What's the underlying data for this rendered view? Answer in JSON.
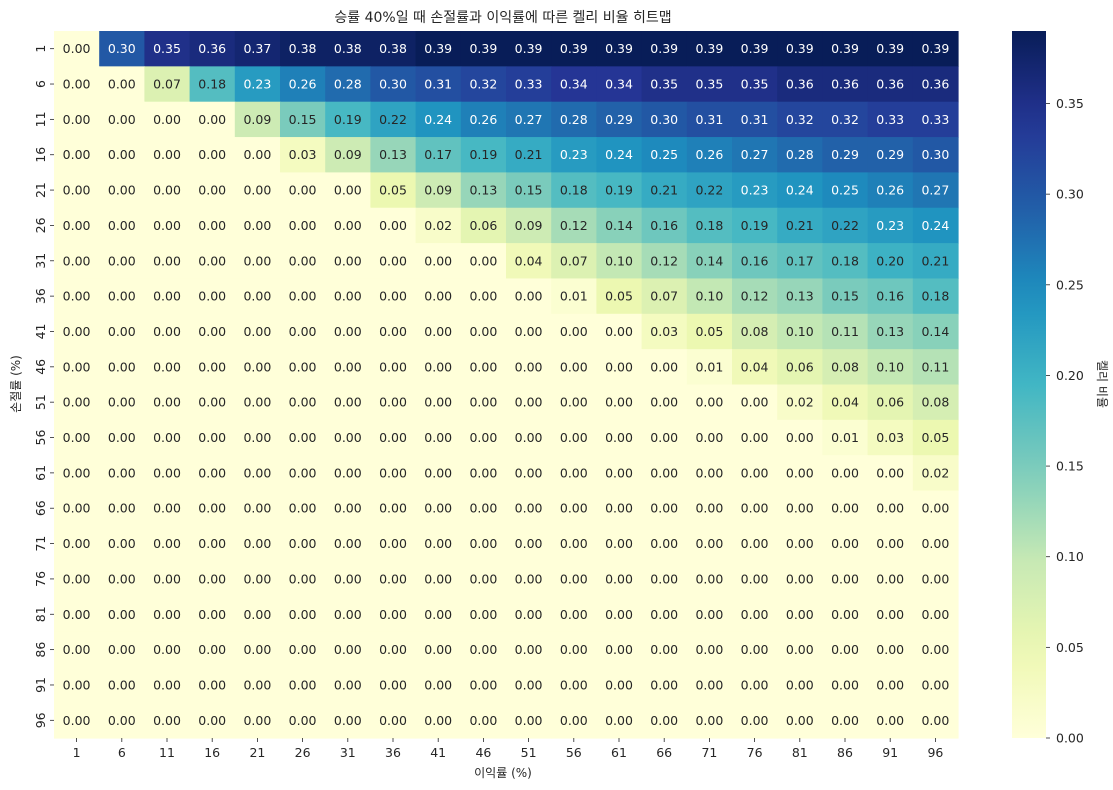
{
  "chart_data": {
    "type": "heatmap",
    "title": "승률 40%일 때 손절률과 이익률에 따른 켈리 비율 히트맵",
    "xlabel": "이익률 (%)",
    "ylabel": "손절률 (%)",
    "x_categories": [
      "1",
      "6",
      "11",
      "16",
      "21",
      "26",
      "31",
      "36",
      "41",
      "46",
      "51",
      "56",
      "61",
      "66",
      "71",
      "76",
      "81",
      "86",
      "91",
      "96"
    ],
    "y_categories": [
      "1",
      "6",
      "11",
      "16",
      "21",
      "26",
      "31",
      "36",
      "41",
      "46",
      "51",
      "56",
      "61",
      "66",
      "71",
      "76",
      "81",
      "86",
      "91",
      "96"
    ],
    "values": [
      [
        0.0,
        0.3,
        0.35,
        0.36,
        0.37,
        0.38,
        0.38,
        0.38,
        0.39,
        0.39,
        0.39,
        0.39,
        0.39,
        0.39,
        0.39,
        0.39,
        0.39,
        0.39,
        0.39,
        0.39
      ],
      [
        0.0,
        0.0,
        0.07,
        0.18,
        0.23,
        0.26,
        0.28,
        0.3,
        0.31,
        0.32,
        0.33,
        0.34,
        0.34,
        0.35,
        0.35,
        0.35,
        0.36,
        0.36,
        0.36,
        0.36
      ],
      [
        0.0,
        0.0,
        0.0,
        0.0,
        0.09,
        0.15,
        0.19,
        0.22,
        0.24,
        0.26,
        0.27,
        0.28,
        0.29,
        0.3,
        0.31,
        0.31,
        0.32,
        0.32,
        0.33,
        0.33
      ],
      [
        0.0,
        0.0,
        0.0,
        0.0,
        0.0,
        0.03,
        0.09,
        0.13,
        0.17,
        0.19,
        0.21,
        0.23,
        0.24,
        0.25,
        0.26,
        0.27,
        0.28,
        0.29,
        0.29,
        0.3
      ],
      [
        0.0,
        0.0,
        0.0,
        0.0,
        0.0,
        0.0,
        0.0,
        0.05,
        0.09,
        0.13,
        0.15,
        0.18,
        0.19,
        0.21,
        0.22,
        0.23,
        0.24,
        0.25,
        0.26,
        0.27
      ],
      [
        0.0,
        0.0,
        0.0,
        0.0,
        0.0,
        0.0,
        0.0,
        0.0,
        0.02,
        0.06,
        0.09,
        0.12,
        0.14,
        0.16,
        0.18,
        0.19,
        0.21,
        0.22,
        0.23,
        0.24
      ],
      [
        0.0,
        0.0,
        0.0,
        0.0,
        0.0,
        0.0,
        0.0,
        0.0,
        0.0,
        0.0,
        0.04,
        0.07,
        0.1,
        0.12,
        0.14,
        0.16,
        0.17,
        0.18,
        0.2,
        0.21
      ],
      [
        0.0,
        0.0,
        0.0,
        0.0,
        0.0,
        0.0,
        0.0,
        0.0,
        0.0,
        0.0,
        0.0,
        0.01,
        0.05,
        0.07,
        0.1,
        0.12,
        0.13,
        0.15,
        0.16,
        0.18
      ],
      [
        0.0,
        0.0,
        0.0,
        0.0,
        0.0,
        0.0,
        0.0,
        0.0,
        0.0,
        0.0,
        0.0,
        0.0,
        0.0,
        0.03,
        0.05,
        0.08,
        0.1,
        0.11,
        0.13,
        0.14
      ],
      [
        0.0,
        0.0,
        0.0,
        0.0,
        0.0,
        0.0,
        0.0,
        0.0,
        0.0,
        0.0,
        0.0,
        0.0,
        0.0,
        0.0,
        0.01,
        0.04,
        0.06,
        0.08,
        0.1,
        0.11
      ],
      [
        0.0,
        0.0,
        0.0,
        0.0,
        0.0,
        0.0,
        0.0,
        0.0,
        0.0,
        0.0,
        0.0,
        0.0,
        0.0,
        0.0,
        0.0,
        0.0,
        0.02,
        0.04,
        0.06,
        0.08
      ],
      [
        0.0,
        0.0,
        0.0,
        0.0,
        0.0,
        0.0,
        0.0,
        0.0,
        0.0,
        0.0,
        0.0,
        0.0,
        0.0,
        0.0,
        0.0,
        0.0,
        0.0,
        0.01,
        0.03,
        0.05
      ],
      [
        0.0,
        0.0,
        0.0,
        0.0,
        0.0,
        0.0,
        0.0,
        0.0,
        0.0,
        0.0,
        0.0,
        0.0,
        0.0,
        0.0,
        0.0,
        0.0,
        0.0,
        0.0,
        0.0,
        0.02
      ],
      [
        0.0,
        0.0,
        0.0,
        0.0,
        0.0,
        0.0,
        0.0,
        0.0,
        0.0,
        0.0,
        0.0,
        0.0,
        0.0,
        0.0,
        0.0,
        0.0,
        0.0,
        0.0,
        0.0,
        0.0
      ],
      [
        0.0,
        0.0,
        0.0,
        0.0,
        0.0,
        0.0,
        0.0,
        0.0,
        0.0,
        0.0,
        0.0,
        0.0,
        0.0,
        0.0,
        0.0,
        0.0,
        0.0,
        0.0,
        0.0,
        0.0
      ],
      [
        0.0,
        0.0,
        0.0,
        0.0,
        0.0,
        0.0,
        0.0,
        0.0,
        0.0,
        0.0,
        0.0,
        0.0,
        0.0,
        0.0,
        0.0,
        0.0,
        0.0,
        0.0,
        0.0,
        0.0
      ],
      [
        0.0,
        0.0,
        0.0,
        0.0,
        0.0,
        0.0,
        0.0,
        0.0,
        0.0,
        0.0,
        0.0,
        0.0,
        0.0,
        0.0,
        0.0,
        0.0,
        0.0,
        0.0,
        0.0,
        0.0
      ],
      [
        0.0,
        0.0,
        0.0,
        0.0,
        0.0,
        0.0,
        0.0,
        0.0,
        0.0,
        0.0,
        0.0,
        0.0,
        0.0,
        0.0,
        0.0,
        0.0,
        0.0,
        0.0,
        0.0,
        0.0
      ],
      [
        0.0,
        0.0,
        0.0,
        0.0,
        0.0,
        0.0,
        0.0,
        0.0,
        0.0,
        0.0,
        0.0,
        0.0,
        0.0,
        0.0,
        0.0,
        0.0,
        0.0,
        0.0,
        0.0,
        0.0
      ],
      [
        0.0,
        0.0,
        0.0,
        0.0,
        0.0,
        0.0,
        0.0,
        0.0,
        0.0,
        0.0,
        0.0,
        0.0,
        0.0,
        0.0,
        0.0,
        0.0,
        0.0,
        0.0,
        0.0,
        0.0
      ]
    ],
    "value_format": "0.00",
    "colormap": "YlGnBu",
    "colorbar": {
      "label": "켈리 비율",
      "range": [
        0.0,
        0.39
      ],
      "ticks": [
        "0.00",
        "0.05",
        "0.10",
        "0.15",
        "0.20",
        "0.25",
        "0.30",
        "0.35"
      ],
      "tick_values": [
        0.0,
        0.05,
        0.1,
        0.15,
        0.2,
        0.25,
        0.3,
        0.35
      ]
    },
    "grid": false,
    "legend": "colorbar-right"
  }
}
